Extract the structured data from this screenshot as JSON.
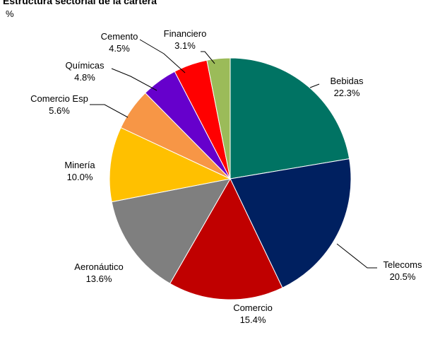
{
  "chart_data": {
    "type": "pie",
    "title": "Estructura sectorial de la cartera",
    "unit": "%",
    "slices": [
      {
        "label": "Bebidas",
        "value_text": "22.3%",
        "value": 22.3,
        "color": "#007363"
      },
      {
        "label": "Telecoms",
        "value_text": "20.5%",
        "value": 20.5,
        "color": "#002060"
      },
      {
        "label": "Comercio",
        "value_text": "15.4%",
        "value": 15.4,
        "color": "#c00000"
      },
      {
        "label": "Aeronáutico",
        "value_text": "13.6%",
        "value": 13.6,
        "color": "#7f7f7f"
      },
      {
        "label": "Minería",
        "value_text": "10.0%",
        "value": 10.0,
        "color": "#ffc000"
      },
      {
        "label": "Comercio Esp",
        "value_text": "5.6%",
        "value": 5.6,
        "color": "#f79646"
      },
      {
        "label": "Químicas",
        "value_text": "4.8%",
        "value": 4.8,
        "color": "#6600cc"
      },
      {
        "label": "Cemento",
        "value_text": "4.5%",
        "value": 4.5,
        "color": "#ff0000"
      },
      {
        "label": "Financiero",
        "value_text": "3.1%",
        "value": 3.1,
        "color": "#9bbb59"
      }
    ]
  }
}
